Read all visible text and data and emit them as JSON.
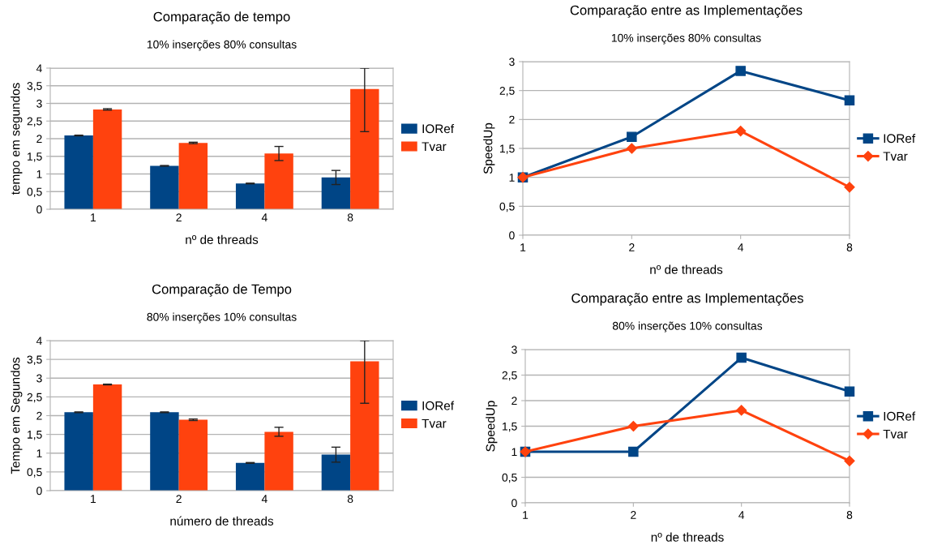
{
  "chart_data": [
    {
      "type": "bar",
      "title": "Comparação de tempo",
      "subtitle": "10% inserções 80% consultas",
      "xlabel": "nº de threads",
      "ylabel": "tempo em segundos",
      "categories": [
        "1",
        "2",
        "4",
        "8"
      ],
      "ylim": [
        0,
        4
      ],
      "yticks": [
        0,
        {
          "value": 0.5,
          "label": "0,5"
        },
        1,
        {
          "value": 1.5,
          "label": "1,5"
        },
        2,
        {
          "value": 2.5,
          "label": "2,5"
        },
        3,
        {
          "value": 3.5,
          "label": "3,5"
        },
        4
      ],
      "grid": "y",
      "legend": "right",
      "series": [
        {
          "name": "IORef",
          "color": "#004586",
          "values": [
            2.09,
            1.23,
            0.73,
            0.9
          ],
          "errors": [
            0.01,
            0.01,
            0.01,
            0.2
          ]
        },
        {
          "name": "Tvar",
          "color": "#ff420e",
          "values": [
            2.83,
            1.88,
            1.58,
            3.41
          ],
          "errors": [
            0.02,
            0.02,
            0.2,
            [
              2.2,
              4
            ]
          ]
        }
      ]
    },
    {
      "type": "line",
      "title": "Comparação entre as Implementações",
      "subtitle": "10% inserções 80% consultas",
      "xlabel": "nº de threads",
      "ylabel": "SpeedUp",
      "categories": [
        "1",
        "2",
        "4",
        "8"
      ],
      "ylim": [
        0,
        3
      ],
      "yticks": [
        0,
        {
          "value": 0.5,
          "label": "0,5"
        },
        1,
        {
          "value": 1.5,
          "label": "1,5"
        },
        2,
        {
          "value": 2.5,
          "label": "2,5"
        },
        3
      ],
      "grid": "y",
      "legend": "right",
      "series": [
        {
          "name": "IORef",
          "color": "#004586",
          "marker": "square",
          "values": [
            1,
            1.7,
            2.84,
            2.33
          ]
        },
        {
          "name": "Tvar",
          "color": "#ff420e",
          "marker": "diamond",
          "values": [
            1,
            1.5,
            1.8,
            0.83
          ]
        }
      ]
    },
    {
      "type": "bar",
      "title": "Comparação de Tempo",
      "subtitle": "80% inserções 10% consultas",
      "xlabel": "número de threads",
      "ylabel": "Tempo em Segundos",
      "categories": [
        "1",
        "2",
        "4",
        "8"
      ],
      "ylim": [
        0,
        4
      ],
      "yticks": [
        0,
        {
          "value": 0.5,
          "label": "0,5"
        },
        1,
        {
          "value": 1.5,
          "label": "1,5"
        },
        2,
        {
          "value": 2.5,
          "label": "2,5"
        },
        3,
        {
          "value": 3.5,
          "label": "3,5"
        },
        4
      ],
      "grid": "y",
      "legend": "right",
      "series": [
        {
          "name": "IORef",
          "color": "#004586",
          "values": [
            2.09,
            2.09,
            0.74,
            0.96
          ],
          "errors": [
            0.01,
            0.01,
            0.01,
            0.2
          ]
        },
        {
          "name": "Tvar",
          "color": "#ff420e",
          "values": [
            2.83,
            1.89,
            1.57,
            3.45
          ],
          "errors": [
            0.01,
            0.02,
            0.12,
            [
              2.33,
              4
            ]
          ]
        }
      ]
    },
    {
      "type": "line",
      "title": "Comparação entre as Implementações",
      "subtitle": "80% inserções 10% consultas",
      "xlabel": "nº de threads",
      "ylabel": "SpeedUp",
      "categories": [
        "1",
        "2",
        "4",
        "8"
      ],
      "ylim": [
        0,
        3
      ],
      "yticks": [
        0,
        {
          "value": 0.5,
          "label": "0,5"
        },
        1,
        {
          "value": 1.5,
          "label": "1,5"
        },
        2,
        {
          "value": 2.5,
          "label": "2,5"
        },
        3
      ],
      "grid": "y",
      "legend": "right",
      "series": [
        {
          "name": "IORef",
          "color": "#004586",
          "marker": "square",
          "values": [
            1,
            1,
            2.84,
            2.18
          ]
        },
        {
          "name": "Tvar",
          "color": "#ff420e",
          "marker": "diamond",
          "values": [
            1,
            1.5,
            1.81,
            0.82
          ]
        }
      ]
    }
  ]
}
